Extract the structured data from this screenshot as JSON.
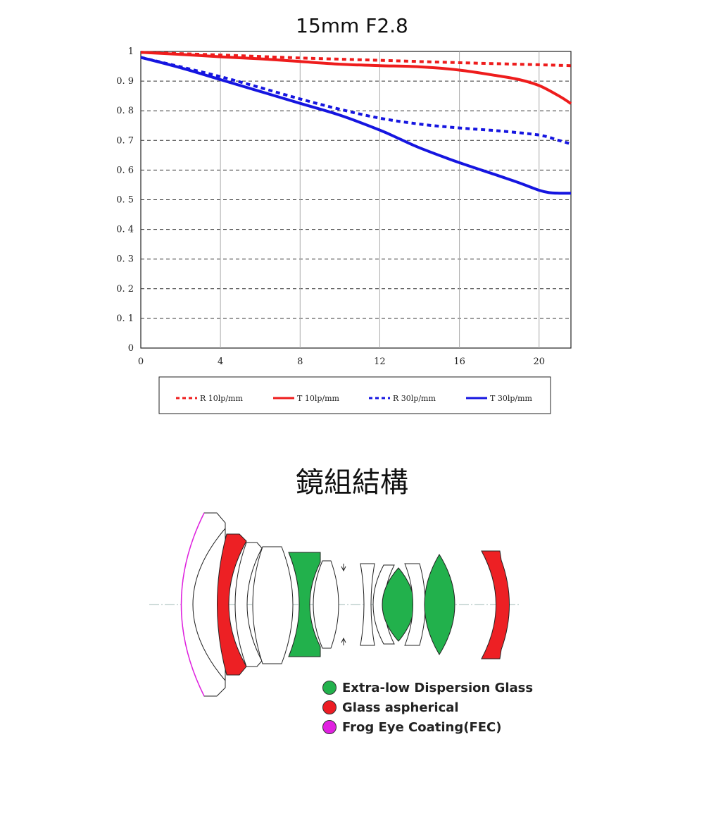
{
  "mtf_title": "15mm F2.8",
  "chart_data": {
    "type": "line",
    "title": "15mm F2.8",
    "xlim": [
      0,
      21.6
    ],
    "ylim": [
      0,
      1
    ],
    "xticks": [
      0,
      4,
      8,
      12,
      16,
      20
    ],
    "yticks": [
      0,
      0.1,
      0.2,
      0.3,
      0.4,
      0.5,
      0.6,
      0.7,
      0.8,
      0.9,
      1
    ],
    "ytick_labels": [
      "0",
      "0. 1",
      "0. 2",
      "0. 3",
      "0. 4",
      "0. 5",
      "0. 6",
      "0. 7",
      "0. 8",
      "0. 9",
      "1"
    ],
    "grid": true,
    "legend_position": "bottom",
    "series": [
      {
        "name": "R 10lp/mm",
        "color": "#ee1c1c",
        "style": "dashed",
        "x": [
          0,
          4,
          8,
          12,
          16,
          20,
          21.6
        ],
        "y": [
          0.997,
          0.988,
          0.978,
          0.97,
          0.962,
          0.955,
          0.952
        ]
      },
      {
        "name": "T 10lp/mm",
        "color": "#ee1c1c",
        "style": "solid",
        "x": [
          0,
          2,
          4,
          6,
          8,
          10,
          12,
          14,
          16,
          18,
          19,
          20,
          21,
          21.6
        ],
        "y": [
          0.997,
          0.99,
          0.982,
          0.975,
          0.966,
          0.957,
          0.952,
          0.948,
          0.937,
          0.917,
          0.905,
          0.885,
          0.85,
          0.824
        ]
      },
      {
        "name": "R 30lp/mm",
        "color": "#1515e0",
        "style": "dashed",
        "x": [
          0,
          4,
          8,
          10,
          12,
          14,
          16,
          18,
          20,
          21,
          21.6
        ],
        "y": [
          0.98,
          0.915,
          0.84,
          0.805,
          0.775,
          0.755,
          0.742,
          0.732,
          0.718,
          0.7,
          0.688
        ]
      },
      {
        "name": "T 30lp/mm",
        "color": "#1515e0",
        "style": "solid",
        "x": [
          0,
          2,
          4,
          6,
          8,
          10,
          12,
          13,
          14,
          16,
          18,
          19,
          20,
          20.5,
          21,
          21.6
        ],
        "y": [
          0.98,
          0.945,
          0.905,
          0.865,
          0.825,
          0.785,
          0.735,
          0.705,
          0.675,
          0.625,
          0.58,
          0.557,
          0.532,
          0.524,
          0.522,
          0.522
        ]
      }
    ]
  },
  "lens_title": "鏡組結構",
  "lens_legend": [
    {
      "label": "Extra-low Dispersion Glass",
      "color": "#22b14c"
    },
    {
      "label": "Glass aspherical",
      "color": "#ed1c24"
    },
    {
      "label": "Frog Eye Coating(FEC)",
      "color": "#e020e0"
    }
  ]
}
